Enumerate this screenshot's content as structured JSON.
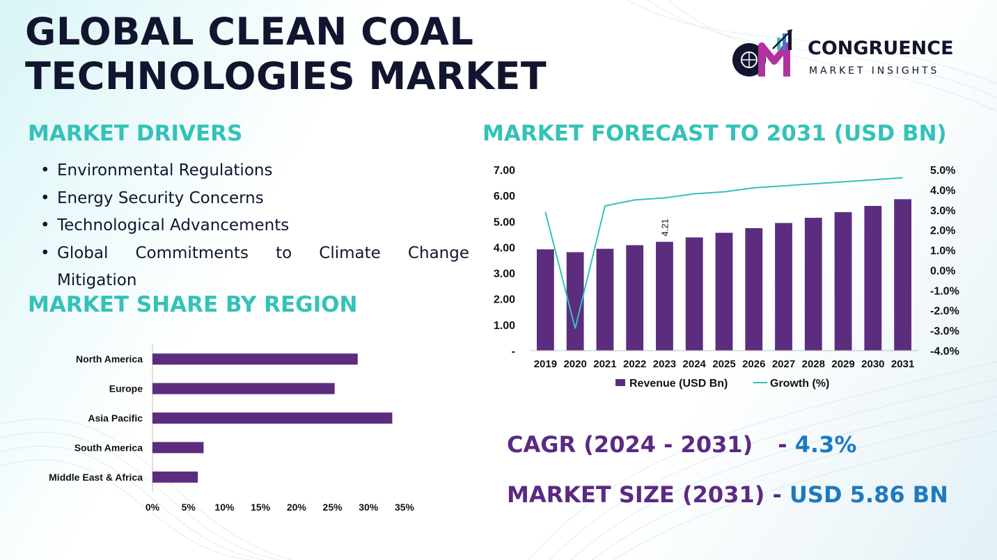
{
  "title": {
    "line1": "GLOBAL CLEAN COAL",
    "line2": "TECHNOLOGIES MARKET"
  },
  "logo": {
    "name": "CONGRUENCE",
    "tagline": "MARKET INSIGHTS",
    "mark": "CMI"
  },
  "colors": {
    "heading": "#34c2b7",
    "bar": "#5c2d7e",
    "line": "#34c2b7",
    "title": "#12152f",
    "stat_value": "#1d7ac0"
  },
  "drivers": {
    "heading": "MARKET DRIVERS",
    "bullet": "•",
    "items": [
      "Environmental Regulations",
      "Energy Security Concerns",
      "Technological Advancements",
      "Global Commitments to Climate Change",
      "Mitigation"
    ]
  },
  "forecast": {
    "heading": "MARKET FORECAST TO 2031 (USD BN)"
  },
  "region": {
    "heading": "MARKET SHARE BY REGION"
  },
  "stats": {
    "cagr_label": "CAGR (2024 - 2031)",
    "cagr_sep": "- ",
    "cagr_value": "4.3%",
    "size_label": "MARKET SIZE (2031)",
    "size_sep": " - ",
    "size_value": "USD 5.86 BN"
  },
  "chart_data": [
    {
      "type": "bar",
      "categories": [
        "2019",
        "2020",
        "2021",
        "2022",
        "2023",
        "2024",
        "2025",
        "2026",
        "2027",
        "2028",
        "2029",
        "2030",
        "2031"
      ],
      "series": [
        {
          "name": "Revenue (USD Bn)",
          "kind": "bar",
          "axis": "left",
          "values": [
            3.92,
            3.81,
            3.94,
            4.08,
            4.21,
            4.38,
            4.56,
            4.74,
            4.94,
            5.14,
            5.36,
            5.6,
            5.86
          ]
        },
        {
          "name": "Growth (%)",
          "kind": "line",
          "axis": "right",
          "values": [
            2.9,
            -2.9,
            3.2,
            3.5,
            3.6,
            3.8,
            3.9,
            4.1,
            4.2,
            4.3,
            4.4,
            4.5,
            4.6
          ]
        }
      ],
      "data_labels": [
        {
          "index": 4,
          "text": "4.21"
        }
      ],
      "ylim_left": [
        0,
        7
      ],
      "ylim_right": [
        -4,
        5
      ],
      "yticks_left": [
        "-",
        "1.00",
        "2.00",
        "3.00",
        "4.00",
        "5.00",
        "6.00",
        "7.00"
      ],
      "yticks_right": [
        "-4.0%",
        "-3.0%",
        "-2.0%",
        "-1.0%",
        "0.0%",
        "1.0%",
        "2.0%",
        "3.0%",
        "4.0%",
        "5.0%"
      ],
      "legend": "bottom",
      "grid": false
    },
    {
      "type": "bar",
      "orientation": "horizontal",
      "categories": [
        "North America",
        "Europe",
        "Asia Pacific",
        "South America",
        "Middle East & Africa"
      ],
      "values": [
        28.5,
        25.3,
        33.3,
        7.1,
        6.3
      ],
      "xlim": [
        0,
        35
      ],
      "xticks": [
        "0%",
        "5%",
        "10%",
        "15%",
        "20%",
        "25%",
        "30%",
        "35%"
      ],
      "grid": false
    }
  ]
}
